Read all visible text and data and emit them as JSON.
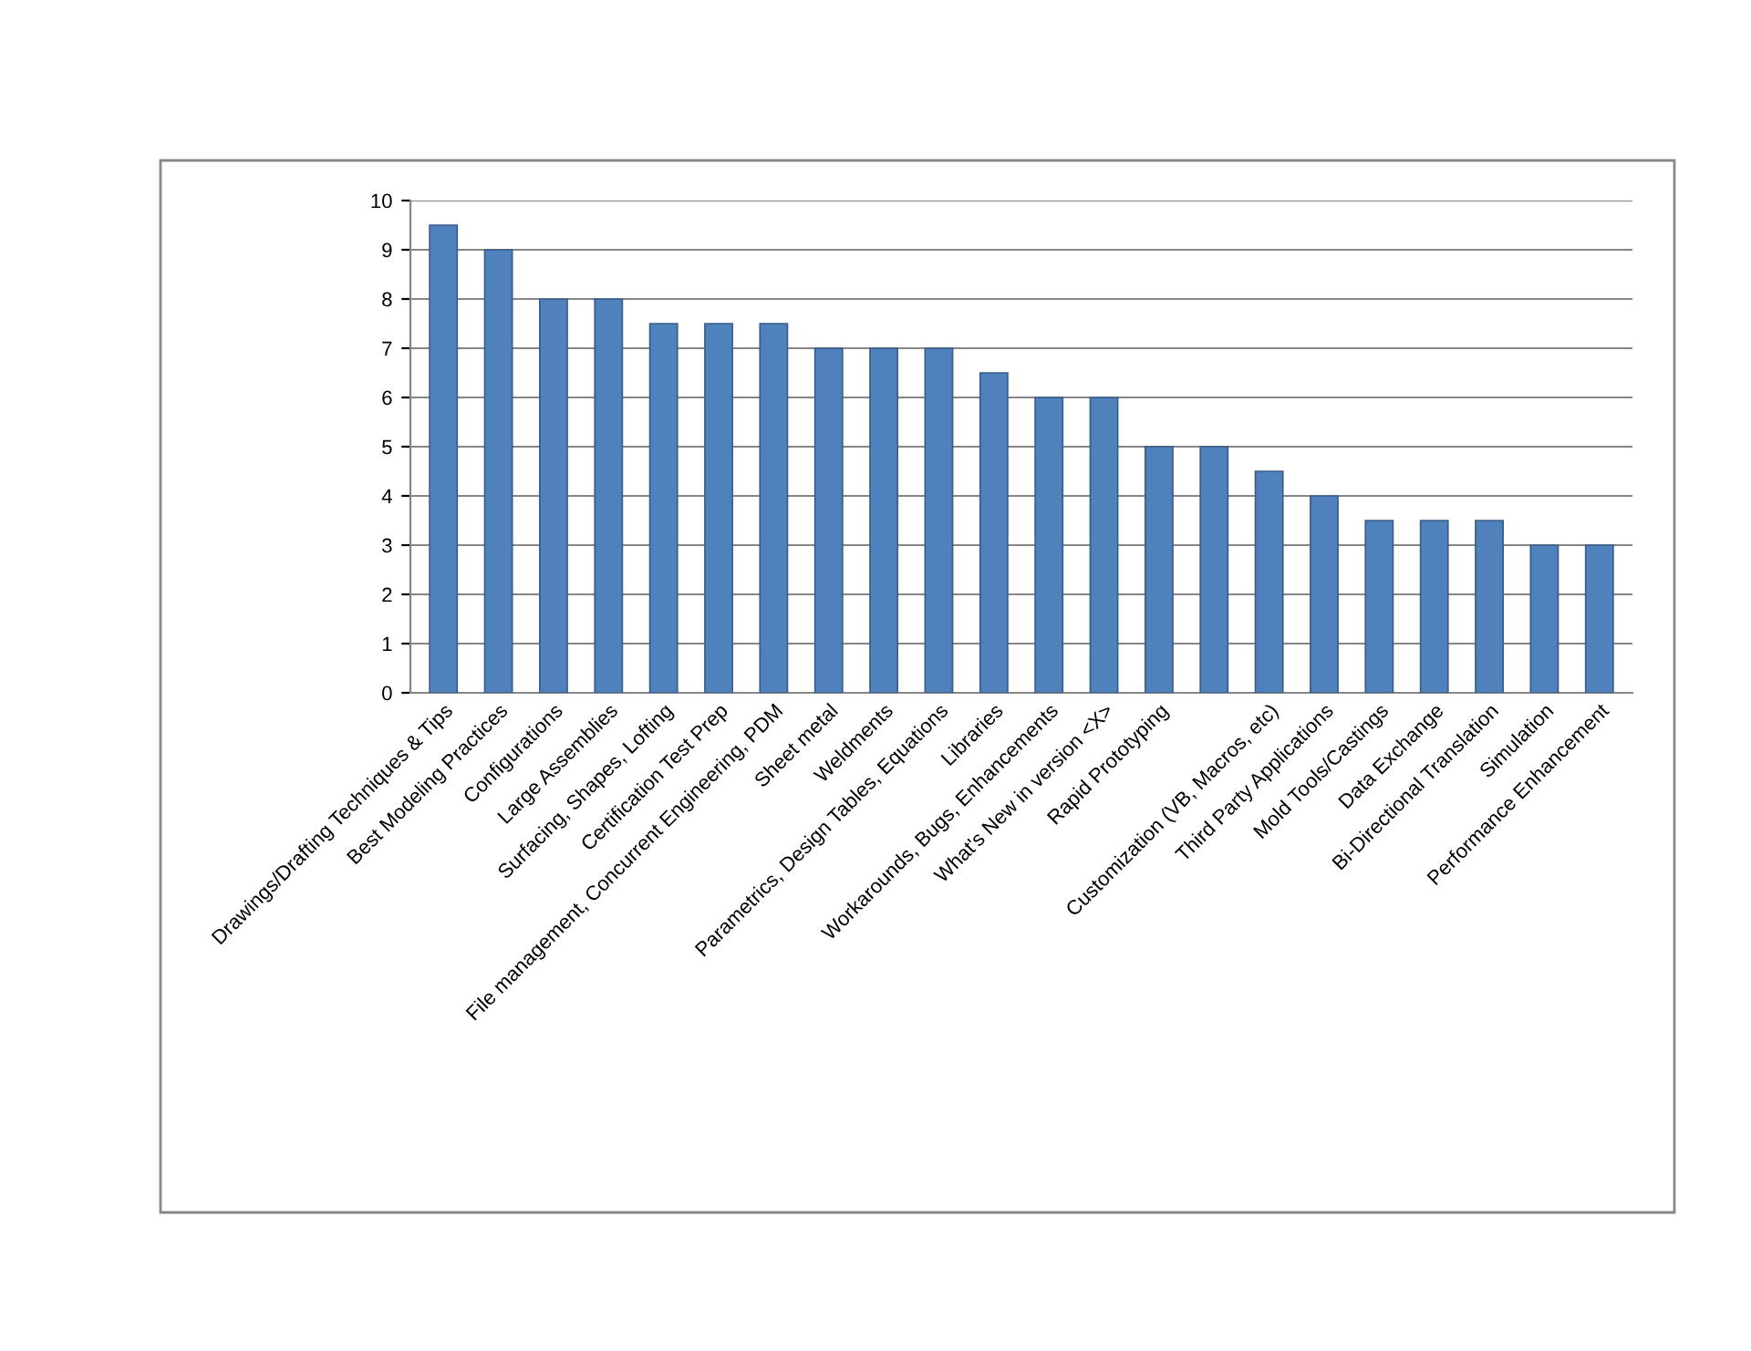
{
  "chart_data": {
    "type": "bar",
    "categories": [
      "Drawings/Drafting Techniques & Tips",
      "Best Modeling Practices",
      "Configurations",
      "Large Assemblies",
      "Surfacing, Shapes, Lofting",
      "Certification Test Prep",
      "File management, Concurrent Engineering, PDM",
      "Sheet metal",
      "Weldments",
      "Parametrics, Design Tables, Equations",
      "Libraries",
      "Workarounds, Bugs, Enhancements",
      "What's New in version <X>",
      "Rapid Prototyping",
      null,
      "Customization (VB, Macros, etc)",
      "Third Party Applications",
      "Mold Tools/Castings",
      "Data Exchange",
      "Bi-Directional Translation",
      "Simulation",
      "Performance Enhancement"
    ],
    "values": [
      9.5,
      9,
      8,
      8,
      7.5,
      7.5,
      7.5,
      7,
      7,
      7,
      6.5,
      6,
      6,
      5,
      5,
      4.5,
      4,
      3.5,
      3.5,
      3.5,
      3,
      3
    ],
    "color": "#4f81bd",
    "ylim": [
      0,
      10
    ],
    "yticks": [
      0,
      1,
      2,
      3,
      4,
      5,
      6,
      7,
      8,
      9,
      10
    ],
    "grid": "y",
    "legend": false
  }
}
